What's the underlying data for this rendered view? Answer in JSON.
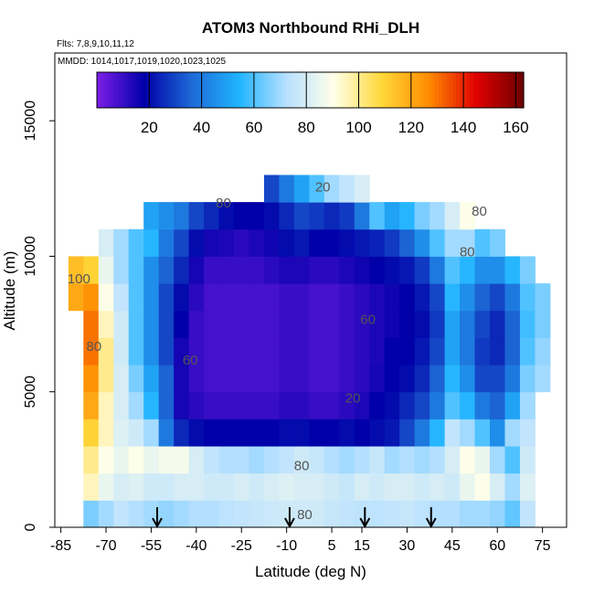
{
  "chart_data": {
    "type": "heatmap",
    "title": "ATOM3 Northbound RHi_DLH",
    "flights_note": "Flts: 7,8,9,10,11,12",
    "dates_note": "MMDD: 1014,1017,1019,1020,1023,1025",
    "xlabel": "Latitude (deg N)",
    "ylabel": "Altitude (m)",
    "xlim": [
      -87,
      83
    ],
    "ylim": [
      0,
      17500
    ],
    "x_ticks": [
      -85,
      -70,
      -55,
      -40,
      -25,
      -10,
      5,
      15,
      30,
      45,
      60,
      75
    ],
    "y_ticks": [
      0,
      5000,
      10000,
      15000
    ],
    "colorbar": {
      "range": [
        0,
        163
      ],
      "ticks": [
        20,
        40,
        60,
        80,
        100,
        120,
        140,
        160
      ],
      "colors": [
        "#7d1fe6",
        "#0000a8",
        "#1e6ad6",
        "#20b4ff",
        "#b8e0ff",
        "#ffffe8",
        "#ffd83a",
        "#ff8c00",
        "#e00000",
        "#6b0000"
      ]
    },
    "flight_markers_lat": [
      -53,
      -9,
      16,
      38
    ],
    "contour_labels": [
      {
        "text": "80",
        "lat": -5,
        "alt": 2100
      },
      {
        "text": "80",
        "lat": -4,
        "alt": 300
      },
      {
        "text": "20",
        "lat": 12,
        "alt": 4600
      },
      {
        "text": "60",
        "lat": 17,
        "alt": 7500
      },
      {
        "text": "60",
        "lat": -42,
        "alt": 6000
      },
      {
        "text": "80",
        "lat": -74,
        "alt": 6500
      },
      {
        "text": "100",
        "lat": -79,
        "alt": 9000
      },
      {
        "text": "80",
        "lat": 50,
        "alt": 10000
      },
      {
        "text": "80",
        "lat": 54,
        "alt": 11500
      },
      {
        "text": "80",
        "lat": -31,
        "alt": 11800
      },
      {
        "text": "20",
        "lat": 2,
        "alt": 12400
      }
    ],
    "rhi_grid": {
      "lat": [
        -80,
        -75,
        -70,
        -65,
        -60,
        -55,
        -50,
        -45,
        -40,
        -35,
        -30,
        -25,
        -20,
        -15,
        -10,
        -5,
        0,
        5,
        10,
        15,
        20,
        25,
        30,
        35,
        40,
        45,
        50,
        55,
        60,
        65,
        70,
        75
      ],
      "alt": [
        500,
        1500,
        2500,
        3500,
        4500,
        5500,
        6500,
        7500,
        8500,
        9500,
        10500,
        11500,
        12500
      ],
      "values": [
        [
          null,
          65,
          70,
          75,
          72,
          70,
          68,
          70,
          72,
          72,
          74,
          75,
          76,
          77,
          78,
          78,
          78,
          76,
          75,
          74,
          74,
          75,
          76,
          74,
          72,
          72,
          70,
          70,
          68,
          62,
          75,
          null
        ],
        [
          null,
          95,
          85,
          80,
          82,
          78,
          78,
          80,
          80,
          78,
          78,
          80,
          78,
          80,
          82,
          80,
          80,
          78,
          76,
          80,
          78,
          80,
          80,
          78,
          80,
          78,
          85,
          90,
          80,
          70,
          82,
          null
        ],
        [
          null,
          100,
          90,
          85,
          90,
          85,
          88,
          88,
          80,
          75,
          72,
          72,
          70,
          72,
          75,
          78,
          76,
          72,
          70,
          72,
          76,
          70,
          72,
          70,
          72,
          80,
          90,
          85,
          70,
          60,
          78,
          null
        ],
        [
          null,
          110,
          95,
          82,
          78,
          70,
          40,
          25,
          20,
          18,
          18,
          18,
          18,
          18,
          20,
          20,
          18,
          18,
          20,
          18,
          20,
          22,
          30,
          40,
          55,
          75,
          70,
          60,
          45,
          70,
          75,
          null
        ],
        [
          null,
          120,
          95,
          80,
          70,
          55,
          35,
          15,
          12,
          10,
          10,
          10,
          10,
          10,
          12,
          12,
          10,
          10,
          12,
          14,
          18,
          20,
          25,
          30,
          40,
          60,
          55,
          40,
          35,
          50,
          70,
          null
        ],
        [
          null,
          125,
          100,
          80,
          65,
          50,
          35,
          15,
          10,
          8,
          8,
          8,
          8,
          8,
          10,
          10,
          8,
          8,
          10,
          12,
          15,
          18,
          20,
          25,
          35,
          55,
          45,
          30,
          30,
          40,
          65,
          70
        ],
        [
          null,
          130,
          100,
          78,
          60,
          45,
          30,
          15,
          10,
          8,
          8,
          8,
          8,
          8,
          10,
          10,
          8,
          8,
          10,
          12,
          14,
          18,
          18,
          22,
          30,
          50,
          40,
          28,
          25,
          35,
          60,
          68
        ],
        [
          null,
          130,
          95,
          78,
          60,
          45,
          30,
          18,
          10,
          8,
          8,
          8,
          8,
          8,
          10,
          10,
          8,
          8,
          10,
          12,
          14,
          16,
          18,
          20,
          28,
          50,
          40,
          30,
          25,
          35,
          58,
          65
        ],
        [
          120,
          125,
          90,
          75,
          60,
          45,
          30,
          20,
          12,
          8,
          8,
          8,
          8,
          8,
          10,
          10,
          8,
          8,
          10,
          12,
          14,
          16,
          18,
          22,
          30,
          55,
          45,
          35,
          30,
          40,
          60,
          65
        ],
        [
          115,
          110,
          85,
          70,
          60,
          45,
          35,
          25,
          15,
          10,
          10,
          10,
          10,
          12,
          14,
          14,
          12,
          12,
          14,
          16,
          18,
          20,
          22,
          28,
          40,
          60,
          55,
          45,
          45,
          55,
          65,
          null
        ],
        [
          null,
          null,
          80,
          70,
          60,
          55,
          40,
          30,
          20,
          15,
          14,
          12,
          14,
          16,
          20,
          22,
          18,
          18,
          20,
          22,
          24,
          28,
          35,
          45,
          60,
          70,
          70,
          60,
          65,
          null,
          null,
          null
        ],
        [
          null,
          null,
          null,
          null,
          null,
          50,
          45,
          40,
          30,
          25,
          20,
          18,
          18,
          20,
          25,
          30,
          28,
          25,
          28,
          40,
          60,
          50,
          55,
          65,
          70,
          80,
          90,
          null,
          null,
          null,
          null,
          null
        ],
        [
          null,
          null,
          null,
          null,
          null,
          null,
          null,
          null,
          null,
          null,
          null,
          null,
          null,
          30,
          40,
          50,
          60,
          70,
          75,
          80,
          null,
          null,
          null,
          null,
          null,
          null,
          null,
          null,
          null,
          null,
          null,
          null
        ]
      ]
    }
  }
}
